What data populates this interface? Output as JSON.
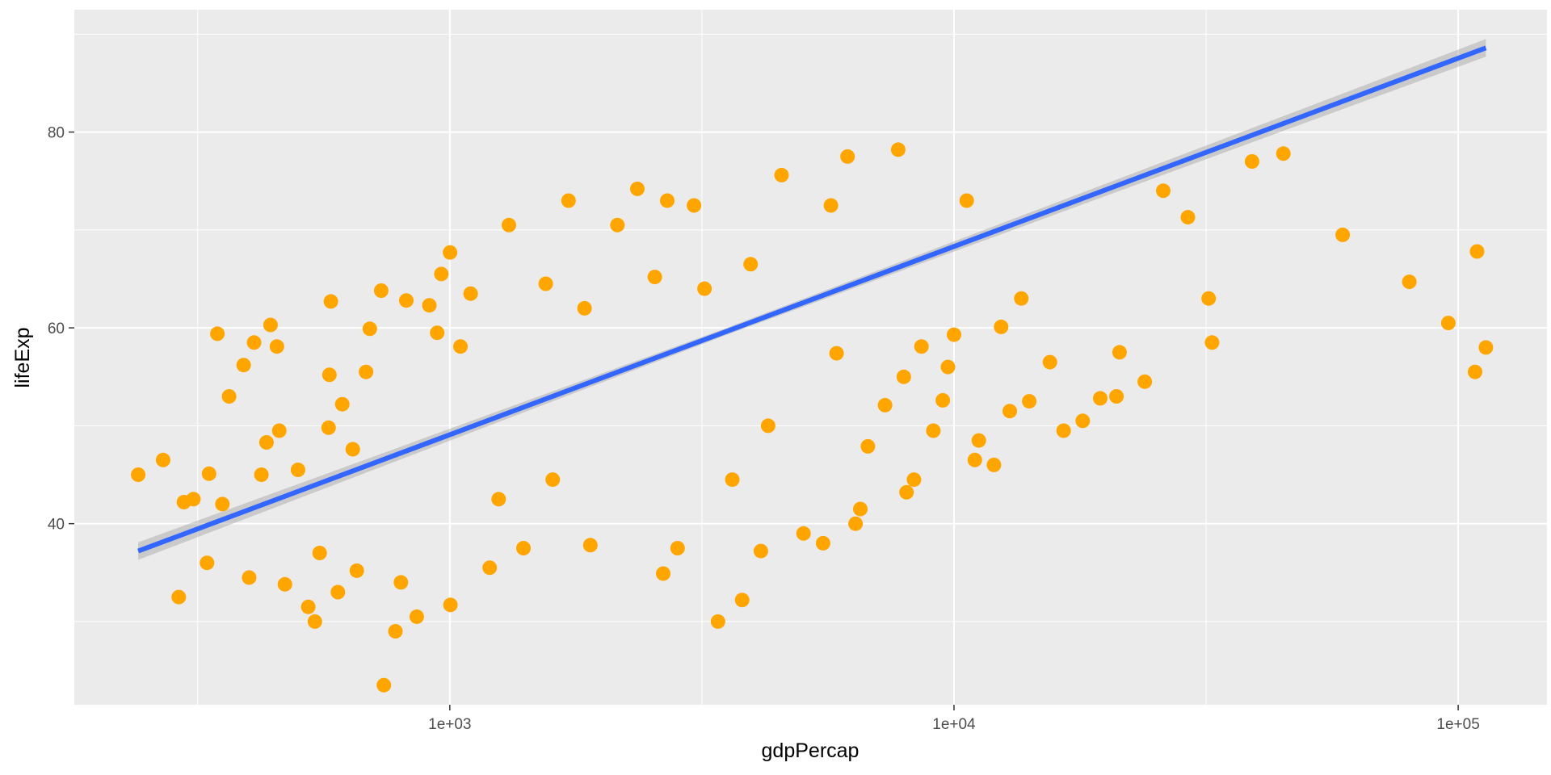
{
  "chart_data": {
    "type": "scatter",
    "title": "",
    "xlabel": "gdpPercap",
    "ylabel": "lifeExp",
    "x_scale": "log10",
    "xlim": [
      180,
      150000
    ],
    "ylim": [
      21.5,
      92.5
    ],
    "x_ticks": [
      {
        "value": 1000,
        "label": "1e+03"
      },
      {
        "value": 10000,
        "label": "1e+04"
      },
      {
        "value": 100000,
        "label": "1e+05"
      }
    ],
    "x_minor_ticks": [
      316.2,
      3162.3,
      31622.8
    ],
    "y_ticks": [
      {
        "value": 40,
        "label": "40"
      },
      {
        "value": 60,
        "label": "60"
      },
      {
        "value": 80,
        "label": "80"
      }
    ],
    "y_minor_ticks": [
      30,
      50,
      70,
      90
    ],
    "grid": true,
    "point_color": "#FFA500",
    "background": "#EBEBEB",
    "gridline_color": "#FFFFFF",
    "series": [
      {
        "type": "scatter",
        "points": [
          [
            241,
            45.0
          ],
          [
            270,
            46.5
          ],
          [
            290,
            32.5
          ],
          [
            297,
            42.2
          ],
          [
            310,
            42.5
          ],
          [
            330,
            36.0
          ],
          [
            333,
            45.1
          ],
          [
            346,
            59.4
          ],
          [
            354,
            42.0
          ],
          [
            365,
            53.0
          ],
          [
            390,
            56.2
          ],
          [
            400,
            34.5
          ],
          [
            409,
            58.5
          ],
          [
            423,
            45.0
          ],
          [
            433,
            48.3
          ],
          [
            441,
            60.3
          ],
          [
            454,
            58.1
          ],
          [
            459,
            49.5
          ],
          [
            471,
            33.8
          ],
          [
            500,
            45.5
          ],
          [
            524,
            31.5
          ],
          [
            540,
            30.0
          ],
          [
            552,
            37.0
          ],
          [
            575,
            49.8
          ],
          [
            577,
            55.2
          ],
          [
            581,
            62.7
          ],
          [
            600,
            33.0
          ],
          [
            612,
            52.2
          ],
          [
            642,
            47.6
          ],
          [
            654,
            35.2
          ],
          [
            682,
            55.5
          ],
          [
            694,
            59.9
          ],
          [
            731,
            63.8
          ],
          [
            740,
            23.5
          ],
          [
            780,
            29.0
          ],
          [
            800,
            34.0
          ],
          [
            820,
            62.8
          ],
          [
            860,
            30.5
          ],
          [
            911,
            62.3
          ],
          [
            944,
            59.5
          ],
          [
            962,
            65.5
          ],
          [
            1001,
            67.7
          ],
          [
            1003,
            31.7
          ],
          [
            1050,
            58.1
          ],
          [
            1100,
            63.5
          ],
          [
            1200,
            35.5
          ],
          [
            1250,
            42.5
          ],
          [
            1310,
            70.5
          ],
          [
            1400,
            37.5
          ],
          [
            1550,
            64.5
          ],
          [
            1600,
            44.5
          ],
          [
            1720,
            73.0
          ],
          [
            1850,
            62.0
          ],
          [
            1900,
            37.8
          ],
          [
            2150,
            70.5
          ],
          [
            2355,
            74.2
          ],
          [
            2550,
            65.2
          ],
          [
            2650,
            34.9
          ],
          [
            2700,
            73.0
          ],
          [
            2830,
            37.5
          ],
          [
            3050,
            72.5
          ],
          [
            3200,
            64.0
          ],
          [
            3403,
            30.0
          ],
          [
            3633,
            44.5
          ],
          [
            3800,
            32.2
          ],
          [
            3950,
            66.5
          ],
          [
            4140,
            37.2
          ],
          [
            4280,
            50.0
          ],
          [
            4550,
            75.6
          ],
          [
            5030,
            39.0
          ],
          [
            5500,
            38.0
          ],
          [
            5700,
            72.5
          ],
          [
            5850,
            57.4
          ],
          [
            6150,
            77.5
          ],
          [
            6380,
            40.0
          ],
          [
            6520,
            41.5
          ],
          [
            6750,
            47.9
          ],
          [
            7300,
            52.1
          ],
          [
            7750,
            78.2
          ],
          [
            7950,
            55.0
          ],
          [
            8050,
            43.2
          ],
          [
            8330,
            44.5
          ],
          [
            8620,
            58.1
          ],
          [
            9100,
            49.5
          ],
          [
            9500,
            52.6
          ],
          [
            9730,
            56.0
          ],
          [
            10000,
            59.3
          ],
          [
            10600,
            73.0
          ],
          [
            11000,
            46.5
          ],
          [
            11200,
            48.5
          ],
          [
            12000,
            46.0
          ],
          [
            12400,
            60.1
          ],
          [
            12900,
            51.5
          ],
          [
            13600,
            63.0
          ],
          [
            14100,
            52.5
          ],
          [
            15500,
            56.5
          ],
          [
            16500,
            49.5
          ],
          [
            18000,
            50.5
          ],
          [
            19500,
            52.8
          ],
          [
            21000,
            53.0
          ],
          [
            21300,
            57.5
          ],
          [
            23900,
            54.5
          ],
          [
            26000,
            74.0
          ],
          [
            29100,
            71.3
          ],
          [
            32000,
            63.0
          ],
          [
            32500,
            58.5
          ],
          [
            39000,
            77.0
          ],
          [
            45000,
            77.8
          ],
          [
            59000,
            69.5
          ],
          [
            80000,
            64.7
          ],
          [
            95600,
            60.5
          ],
          [
            108000,
            55.5
          ],
          [
            109000,
            67.8
          ],
          [
            113500,
            58.0
          ]
        ]
      },
      {
        "type": "regression",
        "name": "",
        "color": "#3366FF",
        "ribbon_color": "#999999",
        "line": [
          [
            241,
            37.2
          ],
          [
            113500,
            88.6
          ]
        ],
        "ribbon_halfwidth": [
          [
            241,
            0.9
          ],
          [
            3500,
            0.35
          ],
          [
            113500,
            0.9
          ]
        ]
      }
    ]
  }
}
